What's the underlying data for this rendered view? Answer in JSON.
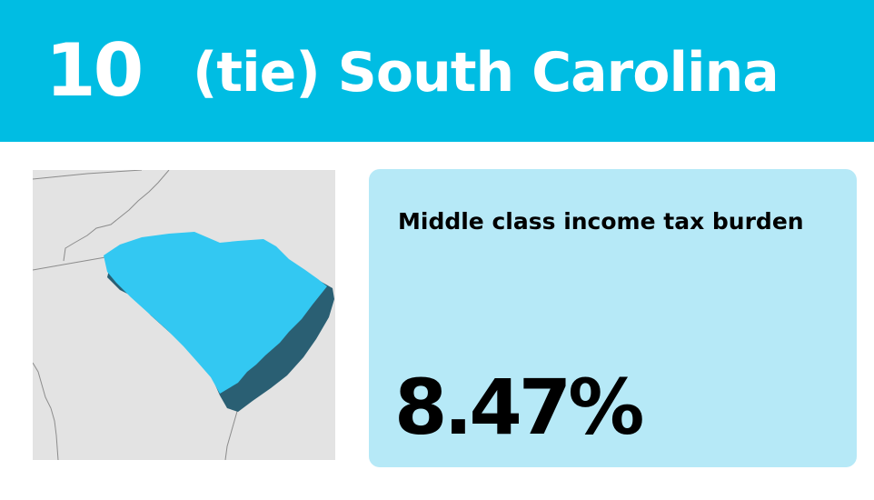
{
  "header": {
    "rank": "10",
    "title": "(tie) South Carolina"
  },
  "card": {
    "label": "Middle class income tax burden",
    "value": "8.47%"
  },
  "colors": {
    "header_background": "#00BDE3",
    "card_background": "#B6E9F7",
    "state_fill": "#33C8F2",
    "state_shadow": "#2A5F73",
    "map_background": "#E3E3E3"
  }
}
